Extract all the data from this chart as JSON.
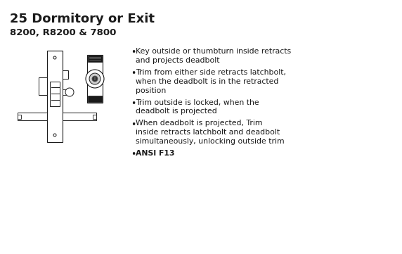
{
  "title": "25 Dormitory or Exit",
  "subtitle": "8200, R8200 & 7800",
  "bullet_points": [
    "Key outside or thumbturn inside retracts\nand projects deadbolt",
    "Trim from either side retracts latchbolt,\nwhen the deadbolt is in the retracted\nposition",
    "Trim outside is locked, when the\ndeadbolt is projected",
    "When deadbolt is projected, Trim\ninside retracts latchbolt and deadbolt\nsimultaneously, unlocking outside trim"
  ],
  "last_bullet_bold": "ANSI F13",
  "bg_color": "#ffffff",
  "text_color": "#1a1a1a",
  "title_fontsize": 13,
  "subtitle_fontsize": 9.5,
  "body_fontsize": 7.8,
  "diagram_scale": 1.0
}
